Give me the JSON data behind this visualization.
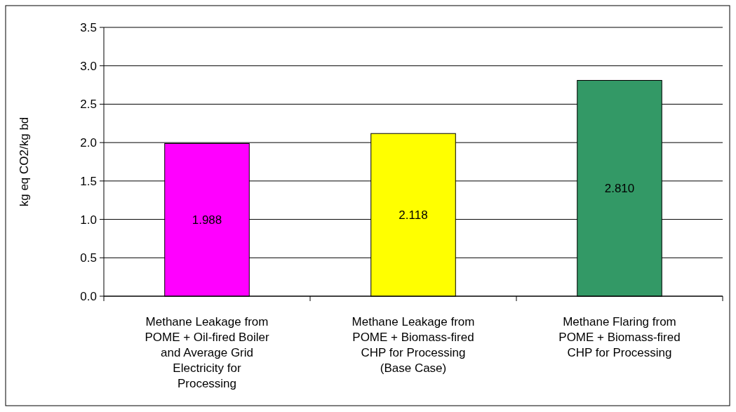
{
  "chart_data": {
    "type": "bar",
    "ylabel": "kg eq CO2/kg bd",
    "categories": [
      "Methane Leakage from POME + Oil-fired Boiler and Average Grid Electricity for Processing",
      "Methane Leakage from POME + Biomass-fired CHP for Processing (Base Case)",
      "Methane Flaring from POME + Biomass-fired CHP for Processing"
    ],
    "values": [
      1.988,
      2.118,
      2.81
    ],
    "colors": [
      "#ff00ff",
      "#ffff00",
      "#339966"
    ],
    "value_labels": [
      "1.988",
      "2.118",
      "2.810"
    ],
    "ylim": [
      0,
      3.5
    ],
    "yticks": [
      {
        "value": 0,
        "label": "0.0"
      },
      {
        "value": 0.5,
        "label": "0.5"
      },
      {
        "value": 1,
        "label": "1.0"
      },
      {
        "value": 1.5,
        "label": "1.5"
      },
      {
        "value": 2,
        "label": "2.0"
      },
      {
        "value": 2.5,
        "label": "2.5"
      },
      {
        "value": 3,
        "label": "3.0"
      },
      {
        "value": 3.5,
        "label": "3.5"
      }
    ],
    "grid": "y"
  }
}
